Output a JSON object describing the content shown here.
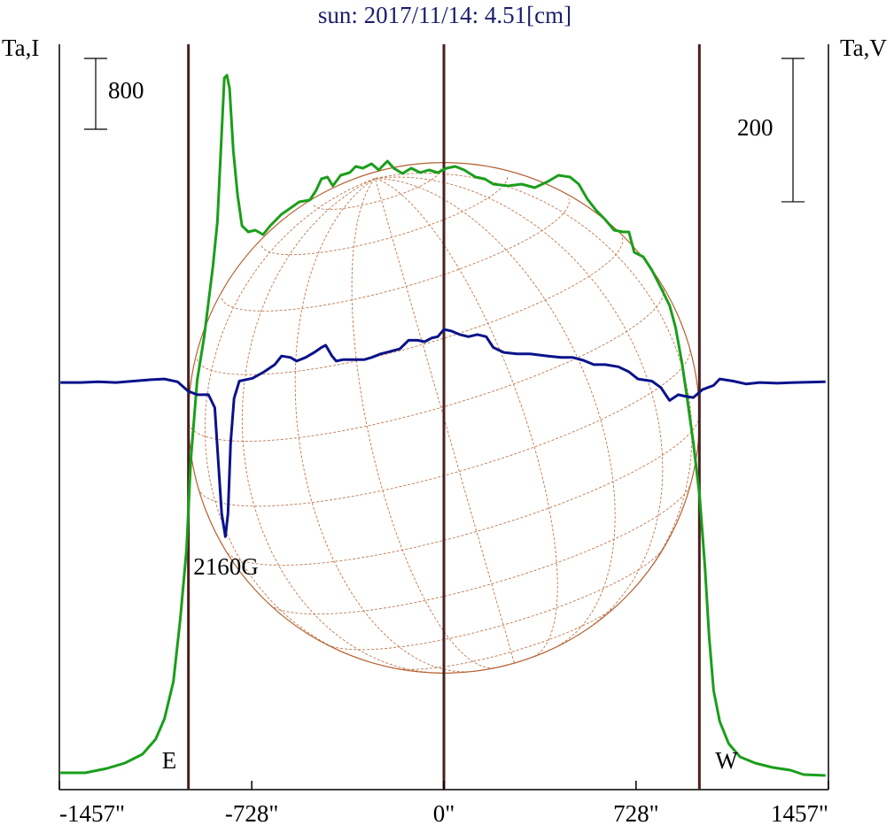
{
  "chart_data": {
    "type": "line",
    "title": "sun: 2017/11/14: 4.51[cm]",
    "title_color": "#1c1c6e",
    "xlim": [
      -1457,
      1457
    ],
    "xticks": [
      {
        "value": -1457,
        "label": "-1457\""
      },
      {
        "value": -728,
        "label": "-728\""
      },
      {
        "value": 0,
        "label": "0\""
      },
      {
        "value": 728,
        "label": "728\""
      },
      {
        "value": 1457,
        "label": "1457\""
      }
    ],
    "ylim": [
      -190,
      8230
    ],
    "y2lim": [
      -568,
      472
    ],
    "vertical_lines": [
      -968,
      0,
      968
    ],
    "vertical_line_color": "#4a1f1f",
    "disk_color": "#b5602f",
    "scale_bars": [
      {
        "value": 800,
        "axis": "y"
      },
      {
        "value": 200,
        "axis": "y2"
      }
    ],
    "annotations": [
      "E",
      "W",
      "2160G"
    ],
    "series": [
      {
        "name": "Ta,I",
        "color": "#1a9e1a",
        "x": [
          -1453,
          -1359,
          -1276,
          -1209,
          -1142,
          -1092,
          -1059,
          -1025,
          -999,
          -975,
          -959,
          -935,
          -908,
          -875,
          -858,
          -842,
          -832,
          -822,
          -812,
          -798,
          -782,
          -765,
          -741,
          -715,
          -685,
          -658,
          -615,
          -581,
          -548,
          -508,
          -484,
          -464,
          -441,
          -421,
          -391,
          -357,
          -334,
          -307,
          -274,
          -247,
          -214,
          -190,
          -157,
          -124,
          -90,
          -57,
          -23,
          10,
          43,
          77,
          120,
          154,
          187,
          244,
          294,
          344,
          394,
          434,
          478,
          511,
          544,
          578,
          611,
          645,
          678,
          701,
          721,
          755,
          788,
          822,
          855,
          878,
          902,
          922,
          945,
          969,
          989,
          1005,
          1022,
          1045,
          1079,
          1122,
          1179,
          1246,
          1313,
          1363,
          1446
        ],
        "values": [
          0,
          0,
          50,
          110,
          210,
          380,
          610,
          1030,
          1730,
          2530,
          3530,
          4430,
          4930,
          5730,
          6230,
          7230,
          7850,
          7880,
          7730,
          7030,
          6530,
          6180,
          6110,
          6130,
          6080,
          6180,
          6310,
          6380,
          6450,
          6470,
          6580,
          6710,
          6730,
          6630,
          6750,
          6780,
          6850,
          6830,
          6880,
          6810,
          6910,
          6830,
          6770,
          6830,
          6780,
          6810,
          6780,
          6830,
          6850,
          6810,
          6730,
          6710,
          6650,
          6630,
          6650,
          6610,
          6680,
          6750,
          6730,
          6650,
          6480,
          6350,
          6250,
          6130,
          6110,
          6110,
          5880,
          5830,
          5680,
          5480,
          5280,
          5030,
          4630,
          4230,
          3730,
          3130,
          2330,
          1530,
          930,
          580,
          330,
          180,
          110,
          60,
          30,
          -20,
          -30
        ]
      },
      {
        "name": "Ta,V",
        "color": "#0a128a",
        "axis": "y2",
        "x": [
          -1453,
          -1376,
          -1309,
          -1242,
          -1176,
          -1109,
          -1059,
          -1009,
          -969,
          -935,
          -892,
          -868,
          -855,
          -842,
          -828,
          -818,
          -808,
          -795,
          -775,
          -725,
          -681,
          -641,
          -615,
          -581,
          -558,
          -524,
          -491,
          -464,
          -448,
          -424,
          -408,
          -381,
          -341,
          -301,
          -274,
          -240,
          -207,
          -167,
          -134,
          -100,
          -73,
          -47,
          -23,
          0,
          27,
          60,
          93,
          127,
          160,
          187,
          227,
          277,
          327,
          394,
          444,
          488,
          528,
          568,
          611,
          661,
          701,
          735,
          788,
          822,
          855,
          888,
          912,
          945,
          979,
          1022,
          1045,
          1096,
          1146,
          1196,
          1263,
          1329,
          1446
        ],
        "values": [
          0,
          0,
          1,
          0,
          2,
          4,
          5,
          1,
          -12,
          -17,
          -17,
          -35,
          -109,
          -183,
          -215,
          -183,
          -84,
          -22,
          2,
          6,
          15,
          25,
          37,
          35,
          30,
          35,
          42,
          49,
          52,
          37,
          30,
          32,
          32,
          32,
          35,
          40,
          43,
          47,
          59,
          59,
          57,
          62,
          64,
          74,
          72,
          67,
          64,
          67,
          64,
          49,
          42,
          40,
          40,
          37,
          35,
          35,
          31,
          25,
          25,
          22,
          15,
          5,
          2,
          -7,
          -25,
          -17,
          -19,
          -21,
          -10,
          -4,
          5,
          2,
          -2,
          0,
          -1,
          0,
          1
        ]
      }
    ]
  }
}
